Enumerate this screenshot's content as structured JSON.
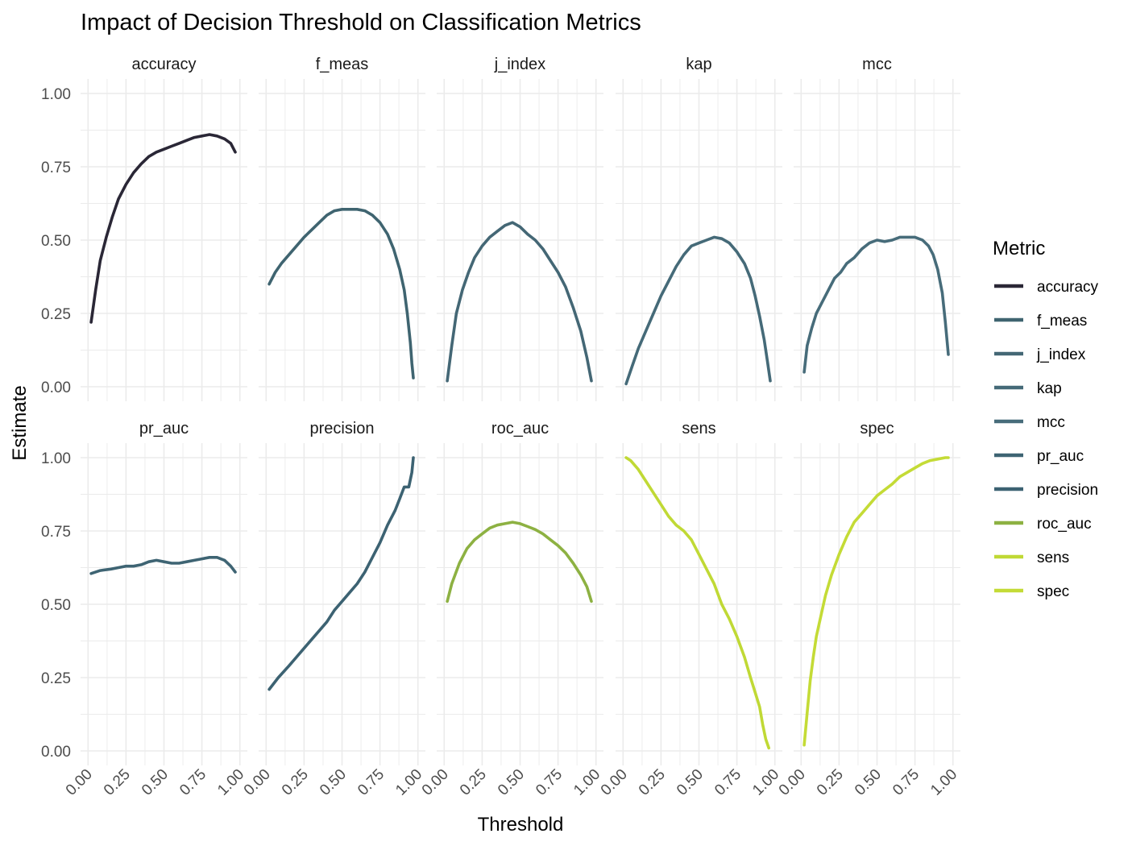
{
  "chart_data": {
    "type": "line",
    "title": "Impact of Decision Threshold on Classification Metrics",
    "xlabel": "Threshold",
    "ylabel": "Estimate",
    "xlim": [
      0,
      1
    ],
    "ylim": [
      0,
      1
    ],
    "x_ticks": [
      "0.00",
      "0.25",
      "0.50",
      "0.75",
      "1.00"
    ],
    "y_ticks": [
      "0.00",
      "0.25",
      "0.50",
      "0.75",
      "1.00"
    ],
    "grid": true,
    "facet_rows": 2,
    "facet_cols": 5,
    "legend": {
      "title": "Metric",
      "placement": "right",
      "entries": [
        {
          "name": "accuracy",
          "color": "#2a2736"
        },
        {
          "name": "f_meas",
          "color": "#3f6470"
        },
        {
          "name": "j_index",
          "color": "#446775"
        },
        {
          "name": "kap",
          "color": "#456a78"
        },
        {
          "name": "mcc",
          "color": "#476c7a"
        },
        {
          "name": "pr_auc",
          "color": "#3e6473"
        },
        {
          "name": "precision",
          "color": "#3c6272"
        },
        {
          "name": "roc_auc",
          "color": "#8db142"
        },
        {
          "name": "sens",
          "color": "#c0d935"
        },
        {
          "name": "spec",
          "color": "#c4db36"
        }
      ]
    },
    "series": [
      {
        "name": "accuracy",
        "x": [
          0.02,
          0.05,
          0.08,
          0.12,
          0.16,
          0.2,
          0.25,
          0.3,
          0.35,
          0.4,
          0.45,
          0.5,
          0.55,
          0.6,
          0.65,
          0.7,
          0.75,
          0.8,
          0.85,
          0.9,
          0.94,
          0.97
        ],
        "values": [
          0.22,
          0.33,
          0.43,
          0.51,
          0.58,
          0.64,
          0.69,
          0.73,
          0.76,
          0.785,
          0.8,
          0.81,
          0.82,
          0.83,
          0.84,
          0.85,
          0.855,
          0.86,
          0.855,
          0.845,
          0.83,
          0.8
        ]
      },
      {
        "name": "f_meas",
        "x": [
          0.02,
          0.06,
          0.1,
          0.15,
          0.2,
          0.25,
          0.3,
          0.35,
          0.4,
          0.45,
          0.5,
          0.55,
          0.6,
          0.65,
          0.7,
          0.75,
          0.8,
          0.84,
          0.88,
          0.91,
          0.93,
          0.95,
          0.96,
          0.97
        ],
        "values": [
          0.35,
          0.39,
          0.42,
          0.45,
          0.48,
          0.51,
          0.535,
          0.56,
          0.585,
          0.6,
          0.605,
          0.605,
          0.605,
          0.6,
          0.585,
          0.56,
          0.52,
          0.47,
          0.4,
          0.33,
          0.25,
          0.15,
          0.08,
          0.03
        ]
      },
      {
        "name": "j_index",
        "x": [
          0.02,
          0.05,
          0.08,
          0.12,
          0.16,
          0.2,
          0.25,
          0.3,
          0.35,
          0.4,
          0.45,
          0.5,
          0.55,
          0.6,
          0.65,
          0.7,
          0.75,
          0.8,
          0.85,
          0.9,
          0.94,
          0.97
        ],
        "values": [
          0.02,
          0.14,
          0.25,
          0.33,
          0.39,
          0.44,
          0.48,
          0.51,
          0.53,
          0.55,
          0.56,
          0.545,
          0.52,
          0.5,
          0.47,
          0.43,
          0.39,
          0.34,
          0.27,
          0.19,
          0.1,
          0.02
        ]
      },
      {
        "name": "kap",
        "x": [
          0.02,
          0.06,
          0.1,
          0.15,
          0.2,
          0.25,
          0.3,
          0.35,
          0.4,
          0.45,
          0.5,
          0.55,
          0.6,
          0.65,
          0.7,
          0.75,
          0.8,
          0.84,
          0.87,
          0.9,
          0.93,
          0.95,
          0.97
        ],
        "values": [
          0.01,
          0.07,
          0.13,
          0.19,
          0.25,
          0.31,
          0.36,
          0.41,
          0.45,
          0.48,
          0.49,
          0.5,
          0.51,
          0.505,
          0.49,
          0.46,
          0.42,
          0.37,
          0.31,
          0.24,
          0.16,
          0.09,
          0.02
        ]
      },
      {
        "name": "mcc",
        "x": [
          0.02,
          0.04,
          0.07,
          0.1,
          0.14,
          0.18,
          0.22,
          0.26,
          0.3,
          0.35,
          0.4,
          0.45,
          0.5,
          0.55,
          0.6,
          0.65,
          0.7,
          0.75,
          0.8,
          0.84,
          0.87,
          0.9,
          0.93,
          0.95,
          0.97
        ],
        "values": [
          0.05,
          0.14,
          0.2,
          0.25,
          0.29,
          0.33,
          0.37,
          0.39,
          0.42,
          0.44,
          0.47,
          0.49,
          0.5,
          0.495,
          0.5,
          0.51,
          0.51,
          0.51,
          0.5,
          0.48,
          0.45,
          0.4,
          0.32,
          0.22,
          0.11
        ]
      },
      {
        "name": "pr_auc",
        "x": [
          0.02,
          0.08,
          0.15,
          0.2,
          0.25,
          0.3,
          0.35,
          0.4,
          0.45,
          0.5,
          0.55,
          0.6,
          0.65,
          0.7,
          0.75,
          0.8,
          0.85,
          0.9,
          0.94,
          0.97
        ],
        "values": [
          0.605,
          0.615,
          0.62,
          0.625,
          0.63,
          0.63,
          0.635,
          0.645,
          0.65,
          0.645,
          0.64,
          0.64,
          0.645,
          0.65,
          0.655,
          0.66,
          0.66,
          0.65,
          0.63,
          0.61
        ]
      },
      {
        "name": "precision",
        "x": [
          0.02,
          0.08,
          0.15,
          0.2,
          0.25,
          0.3,
          0.35,
          0.4,
          0.45,
          0.5,
          0.55,
          0.6,
          0.65,
          0.7,
          0.75,
          0.8,
          0.85,
          0.88,
          0.91,
          0.94,
          0.96,
          0.97
        ],
        "values": [
          0.21,
          0.25,
          0.29,
          0.32,
          0.35,
          0.38,
          0.41,
          0.44,
          0.48,
          0.51,
          0.54,
          0.57,
          0.61,
          0.66,
          0.71,
          0.77,
          0.82,
          0.86,
          0.9,
          0.9,
          0.95,
          1.0
        ]
      },
      {
        "name": "roc_auc",
        "x": [
          0.02,
          0.05,
          0.1,
          0.15,
          0.2,
          0.25,
          0.3,
          0.35,
          0.4,
          0.45,
          0.5,
          0.55,
          0.6,
          0.65,
          0.7,
          0.75,
          0.8,
          0.85,
          0.9,
          0.94,
          0.97
        ],
        "values": [
          0.51,
          0.57,
          0.64,
          0.69,
          0.72,
          0.74,
          0.76,
          0.77,
          0.775,
          0.78,
          0.775,
          0.765,
          0.755,
          0.74,
          0.72,
          0.7,
          0.675,
          0.64,
          0.6,
          0.56,
          0.51
        ]
      },
      {
        "name": "sens",
        "x": [
          0.02,
          0.05,
          0.1,
          0.15,
          0.2,
          0.25,
          0.3,
          0.35,
          0.4,
          0.45,
          0.5,
          0.55,
          0.6,
          0.65,
          0.7,
          0.75,
          0.8,
          0.84,
          0.87,
          0.9,
          0.92,
          0.94,
          0.96
        ],
        "values": [
          1.0,
          0.99,
          0.96,
          0.92,
          0.88,
          0.84,
          0.8,
          0.77,
          0.75,
          0.72,
          0.67,
          0.62,
          0.57,
          0.5,
          0.45,
          0.39,
          0.32,
          0.25,
          0.2,
          0.15,
          0.09,
          0.04,
          0.01
        ]
      },
      {
        "name": "spec",
        "x": [
          0.02,
          0.04,
          0.06,
          0.08,
          0.1,
          0.13,
          0.16,
          0.2,
          0.25,
          0.3,
          0.35,
          0.4,
          0.45,
          0.5,
          0.55,
          0.6,
          0.65,
          0.7,
          0.75,
          0.8,
          0.85,
          0.9,
          0.95,
          0.97
        ],
        "values": [
          0.02,
          0.13,
          0.24,
          0.32,
          0.39,
          0.46,
          0.53,
          0.6,
          0.67,
          0.73,
          0.78,
          0.81,
          0.84,
          0.87,
          0.89,
          0.91,
          0.935,
          0.95,
          0.965,
          0.98,
          0.99,
          0.995,
          1.0,
          1.0
        ]
      }
    ]
  }
}
